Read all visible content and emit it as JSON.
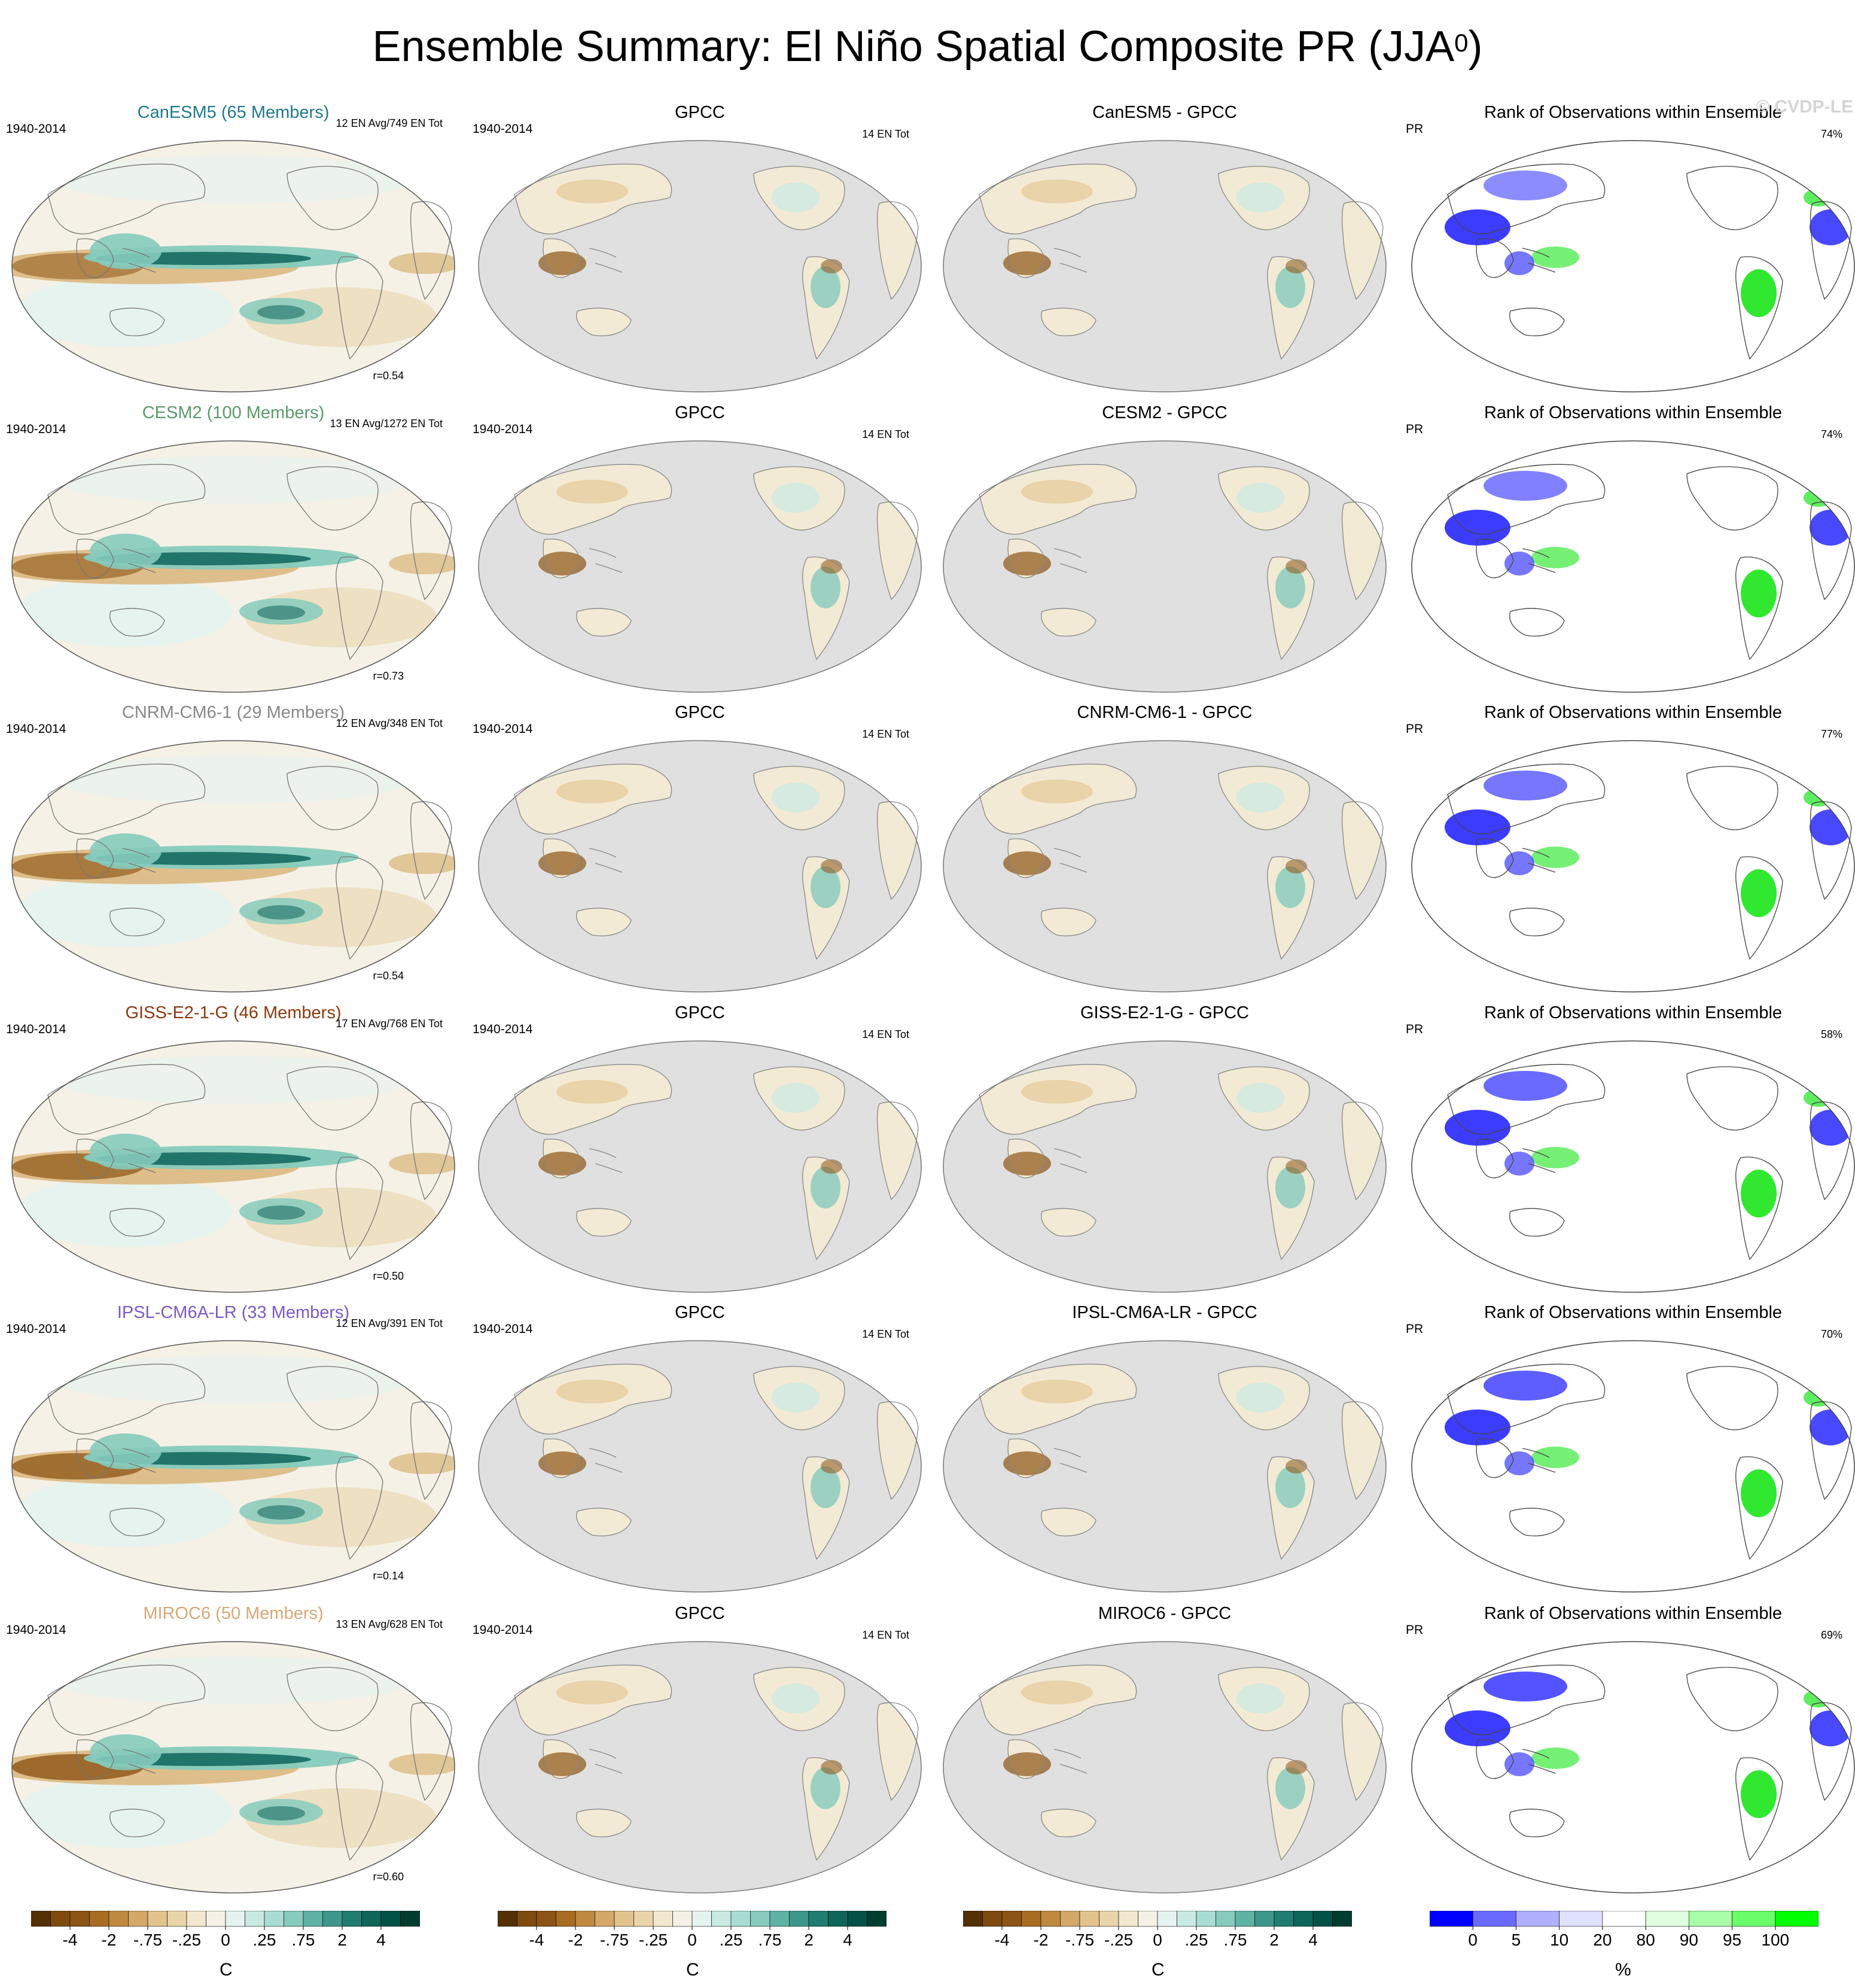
{
  "title": {
    "main": "Ensemble Summary: El Niño Spatial Composite PR (JJA",
    "sup": "0",
    "close": ")"
  },
  "copyright": "© CVDP-LE",
  "rows": [
    {
      "model_title": "CanESM5 (65 Members)",
      "model_color": "#1f7a8c",
      "period": "1940-2014",
      "en_info": "12 EN Avg/749 EN Tot",
      "corr": "r=0.54",
      "obs_title": "GPCC",
      "obs_period": "1940-2014",
      "obs_info": "14 EN Tot",
      "diff_title": "CanESM5 - GPCC",
      "rank_title": "Rank of Observations within Ensemble",
      "rank_var": "PR",
      "rank_pct": "74%"
    },
    {
      "model_title": "CESM2 (100 Members)",
      "model_color": "#5a9a6a",
      "period": "1940-2014",
      "en_info": "13 EN Avg/1272 EN Tot",
      "corr": "r=0.73",
      "obs_title": "GPCC",
      "obs_period": "1940-2014",
      "obs_info": "14 EN Tot",
      "diff_title": "CESM2 - GPCC",
      "rank_title": "Rank of Observations within Ensemble",
      "rank_var": "PR",
      "rank_pct": "74%"
    },
    {
      "model_title": "CNRM-CM6-1 (29 Members)",
      "model_color": "#888888",
      "period": "1940-2014",
      "en_info": "12 EN Avg/348 EN Tot",
      "corr": "r=0.54",
      "obs_title": "GPCC",
      "obs_period": "1940-2014",
      "obs_info": "14 EN Tot",
      "diff_title": "CNRM-CM6-1 - GPCC",
      "rank_title": "Rank of Observations within Ensemble",
      "rank_var": "PR",
      "rank_pct": "77%"
    },
    {
      "model_title": "GISS-E2-1-G (46 Members)",
      "model_color": "#8b3a10",
      "period": "1940-2014",
      "en_info": "17 EN Avg/768 EN Tot",
      "corr": "r=0.50",
      "obs_title": "GPCC",
      "obs_period": "1940-2014",
      "obs_info": "14 EN Tot",
      "diff_title": "GISS-E2-1-G - GPCC",
      "rank_title": "Rank of Observations within Ensemble",
      "rank_var": "PR",
      "rank_pct": "58%"
    },
    {
      "model_title": "IPSL-CM6A-LR (33 Members)",
      "model_color": "#7a5ac8",
      "period": "1940-2014",
      "en_info": "12 EN Avg/391 EN Tot",
      "corr": "r=0.14",
      "obs_title": "GPCC",
      "obs_period": "1940-2014",
      "obs_info": "14 EN Tot",
      "diff_title": "IPSL-CM6A-LR - GPCC",
      "rank_title": "Rank of Observations within Ensemble",
      "rank_var": "PR",
      "rank_pct": "70%"
    },
    {
      "model_title": "MIROC6 (50 Members)",
      "model_color": "#d6a877",
      "period": "1940-2014",
      "en_info": "13 EN Avg/628 EN Tot",
      "corr": "r=0.60",
      "obs_title": "GPCC",
      "obs_period": "1940-2014",
      "obs_info": "14 EN Tot",
      "diff_title": "MIROC6 - GPCC",
      "rank_title": "Rank of Observations within Ensemble",
      "rank_var": "PR",
      "rank_pct": "69%"
    }
  ],
  "colorbars": {
    "diverging": {
      "labels": [
        "-4",
        "-2",
        "-.75",
        "-.25",
        "0",
        ".25",
        ".75",
        "2",
        "4"
      ],
      "unit": "C",
      "colors": [
        "#543005",
        "#7f4a0f",
        "#8c5414",
        "#a86d22",
        "#bf8a3f",
        "#d3a868",
        "#e2c38d",
        "#ead5aa",
        "#f3e8cf",
        "#f5f1e6",
        "#e6f3f0",
        "#c9eae3",
        "#a9ddd4",
        "#86cbbd",
        "#5fb3a5",
        "#3d978b",
        "#217c72",
        "#0e655a",
        "#035247",
        "#003c30"
      ]
    },
    "rank": {
      "labels": [
        "0",
        "5",
        "10",
        "20",
        "80",
        "90",
        "95",
        "100"
      ],
      "unit": "%",
      "colors": [
        "#0000ff",
        "#6a6aff",
        "#b0b0ff",
        "#e0e0ff",
        "#ffffff",
        "#e0ffe0",
        "#a8ffa8",
        "#6aff6a",
        "#00ff00"
      ]
    }
  },
  "palette": {
    "brown_strong": "#8c5414",
    "brown_light": "#dcbb85",
    "teal_strong": "#0e655a",
    "teal_light": "#86cbbd",
    "ocean_ok": "#f5f1e6",
    "obs_ocean": "#e0e0e0",
    "rank_blue": "#1a1aff",
    "rank_green": "#19e619"
  }
}
